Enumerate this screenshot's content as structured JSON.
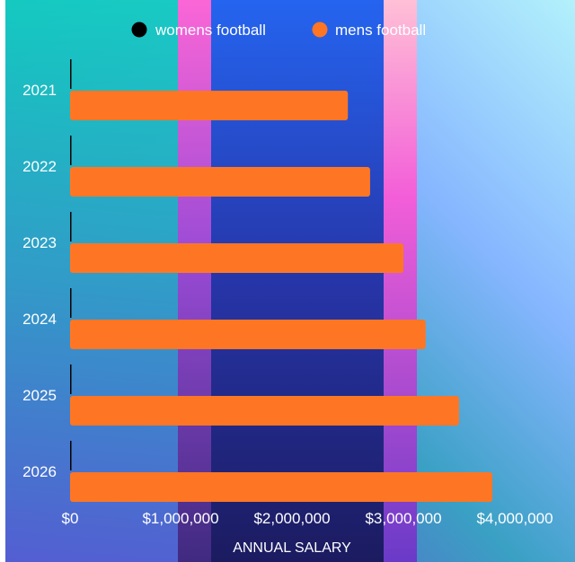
{
  "chart_data": {
    "type": "bar",
    "orientation": "horizontal",
    "categories": [
      "2021",
      "2022",
      "2023",
      "2024",
      "2025",
      "2026"
    ],
    "series": [
      {
        "name": "womens football",
        "color": "#000000",
        "values": [
          5000,
          5000,
          5000,
          5000,
          5000,
          5000
        ]
      },
      {
        "name": "mens football",
        "color": "#fe7624",
        "values": [
          2500000,
          2700000,
          3000000,
          3200000,
          3500000,
          3800000
        ]
      }
    ],
    "x_ticks": [
      "$0",
      "$1,000,000",
      "$2,000,000",
      "$3,000,000",
      "$4,000,000"
    ],
    "xlabel": "ANNUAL SALARY",
    "xlim": [
      0,
      4000000
    ],
    "legend_position": "top-center",
    "grid": false
  }
}
